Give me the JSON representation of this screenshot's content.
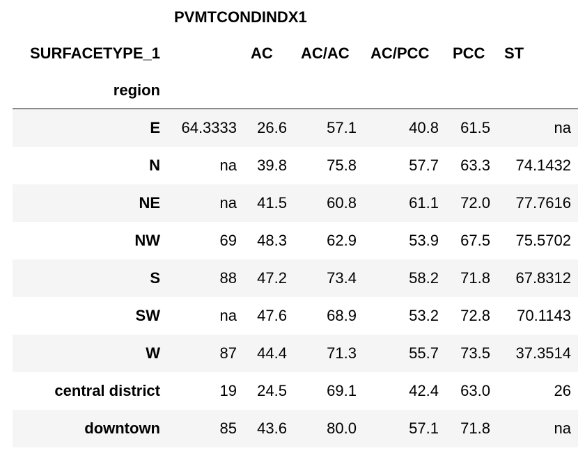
{
  "table": {
    "top_header": "PVMTCONDINDX1",
    "columns_name": "SURFACETYPE_1",
    "index_name": "region",
    "columns": [
      "",
      "AC",
      "AC/AC",
      "AC/PCC",
      "PCC",
      "ST"
    ],
    "rows": [
      {
        "label": "E",
        "values": [
          "64.3333",
          "26.6",
          "57.1",
          "40.8",
          "61.5",
          "na"
        ]
      },
      {
        "label": "N",
        "values": [
          "na",
          "39.8",
          "75.8",
          "57.7",
          "63.3",
          "74.1432"
        ]
      },
      {
        "label": "NE",
        "values": [
          "na",
          "41.5",
          "60.8",
          "61.1",
          "72.0",
          "77.7616"
        ]
      },
      {
        "label": "NW",
        "values": [
          "69",
          "48.3",
          "62.9",
          "53.9",
          "67.5",
          "75.5702"
        ]
      },
      {
        "label": "S",
        "values": [
          "88",
          "47.2",
          "73.4",
          "58.2",
          "71.8",
          "67.8312"
        ]
      },
      {
        "label": "SW",
        "values": [
          "na",
          "47.6",
          "68.9",
          "53.2",
          "72.8",
          "70.1143"
        ]
      },
      {
        "label": "W",
        "values": [
          "87",
          "44.4",
          "71.3",
          "55.7",
          "73.5",
          "37.3514"
        ]
      },
      {
        "label": "central district",
        "values": [
          "19",
          "24.5",
          "69.1",
          "42.4",
          "63.0",
          "26"
        ]
      },
      {
        "label": "downtown",
        "values": [
          "85",
          "43.6",
          "80.0",
          "57.1",
          "71.8",
          "na"
        ]
      }
    ]
  }
}
